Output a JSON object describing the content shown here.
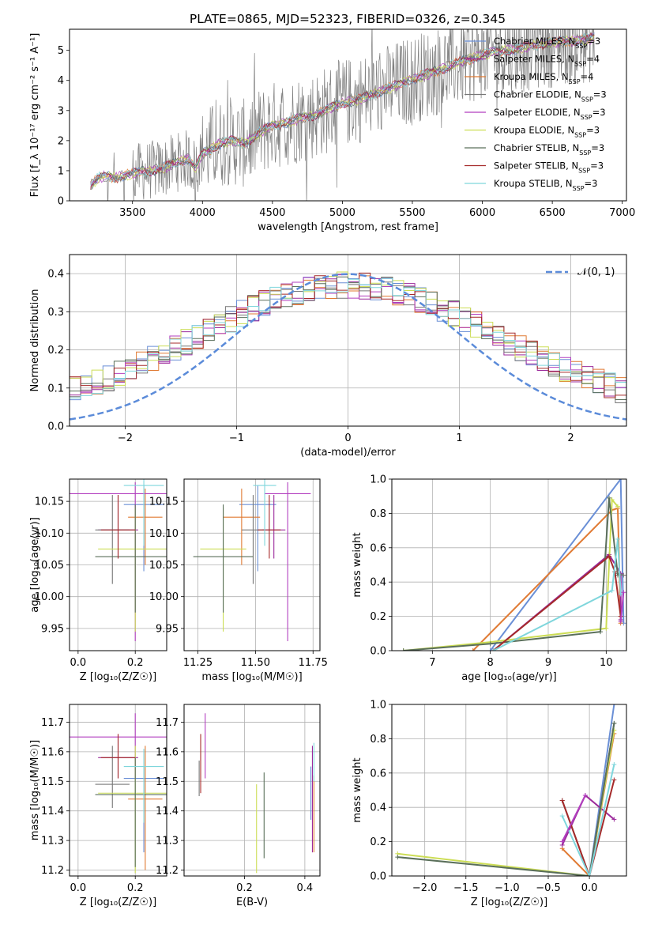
{
  "title": "PLATE=0865, MJD=52323, FIBERID=0326, z=0.345",
  "colors": {
    "chabrier_miles": "#6a8fd6",
    "salpeter_miles": "#9b2a9b",
    "kroupa_miles": "#e07a33",
    "chabrier_elodie": "#777777",
    "salpeter_elodie": "#b23fbf",
    "kroupa_elodie": "#ccdd55",
    "chabrier_stelib": "#5a6f5a",
    "salpeter_stelib": "#a52a2a",
    "kroupa_stelib": "#7fd6dc",
    "data": "#808080",
    "normal": "#5b8bd9",
    "grid": "#b0b0b0"
  },
  "chart_data": [
    {
      "id": "spectrum",
      "type": "line",
      "xlabel": "wavelength [Angstrom, rest frame]",
      "ylabel": "Flux [f_λ 10⁻¹⁷ erg cm⁻² s⁻¹ A⁻¹]",
      "xlim": [
        3050,
        7030
      ],
      "ylim": [
        0,
        5.7
      ],
      "xticks": [
        "3500",
        "4000",
        "4500",
        "5000",
        "5500",
        "6000",
        "6500",
        "7000"
      ],
      "yticks": [
        "0",
        "1",
        "2",
        "3",
        "4",
        "5"
      ],
      "grid": false,
      "legend_placement": "top-right",
      "series": [
        {
          "name": "Chabrier MILES, N",
          "sub": "SSP",
          "suffix": "=3"
        },
        {
          "name": "Salpeter MILES, N",
          "sub": "SSP",
          "suffix": "=4"
        },
        {
          "name": "Kroupa MILES, N",
          "sub": "SSP",
          "suffix": "=4"
        },
        {
          "name": "Chabrier ELODIE, N",
          "sub": "SSP",
          "suffix": "=3"
        },
        {
          "name": "Salpeter ELODIE, N",
          "sub": "SSP",
          "suffix": "=3"
        },
        {
          "name": "Kroupa ELODIE, N",
          "sub": "SSP",
          "suffix": "=3"
        },
        {
          "name": "Chabrier STELIB, N",
          "sub": "SSP",
          "suffix": "=3"
        },
        {
          "name": "Salpeter STELIB, N",
          "sub": "SSP",
          "suffix": "=3"
        },
        {
          "name": "Kroupa STELIB, N",
          "sub": "SSP",
          "suffix": "=3"
        }
      ],
      "model_continuum": [
        [
          3200,
          0.5
        ],
        [
          3230,
          0.65
        ],
        [
          3270,
          0.8
        ],
        [
          3330,
          0.82
        ],
        [
          3380,
          0.75
        ],
        [
          3420,
          0.82
        ],
        [
          3500,
          0.9
        ],
        [
          3600,
          1.0
        ],
        [
          3700,
          1.05
        ],
        [
          3800,
          1.25
        ],
        [
          3900,
          1.4
        ],
        [
          3950,
          1.1
        ],
        [
          4000,
          1.55
        ],
        [
          4100,
          1.85
        ],
        [
          4200,
          2.0
        ],
        [
          4300,
          1.9
        ],
        [
          4400,
          2.25
        ],
        [
          4500,
          2.5
        ],
        [
          4600,
          2.6
        ],
        [
          4700,
          2.75
        ],
        [
          4800,
          2.85
        ],
        [
          4900,
          3.05
        ],
        [
          5000,
          3.25
        ],
        [
          5100,
          3.35
        ],
        [
          5200,
          3.5
        ],
        [
          5300,
          3.7
        ],
        [
          5400,
          3.85
        ],
        [
          5500,
          4.05
        ],
        [
          5600,
          4.2
        ],
        [
          5700,
          4.35
        ],
        [
          5800,
          4.55
        ],
        [
          5900,
          4.7
        ],
        [
          6000,
          4.85
        ],
        [
          6100,
          4.95
        ],
        [
          6200,
          5.0
        ],
        [
          6300,
          5.1
        ],
        [
          6400,
          5.2
        ],
        [
          6500,
          5.25
        ],
        [
          6600,
          5.3
        ],
        [
          6700,
          5.35
        ],
        [
          6800,
          5.4
        ]
      ]
    },
    {
      "id": "residuals",
      "type": "histogram",
      "xlabel": "(data-model)/error",
      "ylabel": "Normed distribution",
      "xlim": [
        -2.5,
        2.5
      ],
      "ylim": [
        0,
        0.45
      ],
      "xticks": [
        "−2",
        "−1",
        "0",
        "1",
        "2"
      ],
      "yticks": [
        "0.0",
        "0.1",
        "0.2",
        "0.3",
        "0.4"
      ],
      "grid": true,
      "legend_placement": "top-right",
      "legend_label": "𝒩(0, 1)",
      "bins": 50
    },
    {
      "id": "age_vs_Z",
      "type": "errorbar",
      "xlabel": "Z [log₁₀(Z/Z☉)]",
      "ylabel": "age  [log₁₀(age/yr)]",
      "xlim": [
        -0.03,
        0.31
      ],
      "ylim": [
        9.915,
        10.185
      ],
      "xticks": [
        "0.0",
        "0.2"
      ],
      "yticks": [
        "9.95",
        "10.00",
        "10.05",
        "10.10",
        "10.15"
      ],
      "grid": true,
      "points": [
        {
          "x": 0.23,
          "xe": 0.07,
          "y": 10.145,
          "ylo": 10.04,
          "yhi": 10.175,
          "c": "chabrier_miles"
        },
        {
          "x": 0.14,
          "xe": 0.07,
          "y": 10.105,
          "ylo": 10.06,
          "yhi": 10.16,
          "c": "salpeter_miles"
        },
        {
          "x": 0.235,
          "xe": 0.06,
          "y": 10.125,
          "ylo": 10.05,
          "yhi": 10.17,
          "c": "kroupa_miles"
        },
        {
          "x": 0.12,
          "xe": 0.06,
          "y": 10.105,
          "ylo": 10.02,
          "yhi": 10.16,
          "c": "chabrier_elodie"
        },
        {
          "x": 0.2,
          "xe": 0.25,
          "y": 10.162,
          "ylo": 9.93,
          "yhi": 10.18,
          "c": "salpeter_elodie"
        },
        {
          "x": 0.2,
          "xe": 0.13,
          "y": 10.075,
          "ylo": 9.945,
          "yhi": 10.14,
          "c": "kroupa_elodie"
        },
        {
          "x": 0.2,
          "xe": 0.14,
          "y": 10.063,
          "ylo": 9.975,
          "yhi": 10.145,
          "c": "chabrier_stelib"
        },
        {
          "x": 0.14,
          "xe": 0.06,
          "y": 10.105,
          "ylo": 10.06,
          "yhi": 10.16,
          "c": "salpeter_stelib"
        },
        {
          "x": 0.23,
          "xe": 0.07,
          "y": 10.175,
          "ylo": 10.08,
          "yhi": 10.185,
          "c": "kroupa_stelib"
        }
      ]
    },
    {
      "id": "age_vs_mass",
      "type": "errorbar",
      "xlabel": "mass [log₁₀(M/M☉)]",
      "ylabel": "",
      "xlim": [
        11.19,
        11.78
      ],
      "ylim": [
        9.915,
        10.185
      ],
      "xticks": [
        "11.25",
        "11.50",
        "11.75"
      ],
      "yticks": [
        "9.95",
        "10.00",
        "10.05",
        "10.10",
        "10.15"
      ],
      "grid": true,
      "points": [
        {
          "x": 11.51,
          "xe": 0.08,
          "y": 10.145,
          "ylo": 10.04,
          "yhi": 10.175,
          "c": "chabrier_miles"
        },
        {
          "x": 11.58,
          "xe": 0.05,
          "y": 10.105,
          "ylo": 10.06,
          "yhi": 10.16,
          "c": "salpeter_miles"
        },
        {
          "x": 11.44,
          "xe": 0.08,
          "y": 10.125,
          "ylo": 10.05,
          "yhi": 10.17,
          "c": "kroupa_miles"
        },
        {
          "x": 11.49,
          "xe": 0.05,
          "y": 10.105,
          "ylo": 10.02,
          "yhi": 10.16,
          "c": "chabrier_elodie"
        },
        {
          "x": 11.64,
          "xe": 0.1,
          "y": 10.162,
          "ylo": 9.93,
          "yhi": 10.18,
          "c": "salpeter_elodie"
        },
        {
          "x": 11.36,
          "xe": 0.1,
          "y": 10.075,
          "ylo": 9.945,
          "yhi": 10.14,
          "c": "kroupa_elodie"
        },
        {
          "x": 11.36,
          "xe": 0.13,
          "y": 10.063,
          "ylo": 9.975,
          "yhi": 10.145,
          "c": "chabrier_stelib"
        },
        {
          "x": 11.56,
          "xe": 0.05,
          "y": 10.105,
          "ylo": 10.06,
          "yhi": 10.16,
          "c": "salpeter_stelib"
        },
        {
          "x": 11.54,
          "xe": 0.05,
          "y": 10.175,
          "ylo": 10.08,
          "yhi": 10.185,
          "c": "kroupa_stelib"
        }
      ]
    },
    {
      "id": "weight_vs_age",
      "type": "line",
      "xlabel": "age  [log₁₀(age/yr)]",
      "ylabel": "mass weight",
      "xlim": [
        6.3,
        10.35
      ],
      "ylim": [
        0,
        1.0
      ],
      "xticks": [
        "7",
        "8",
        "9",
        "10"
      ],
      "yticks": [
        "0.0",
        "0.2",
        "0.4",
        "0.6",
        "0.8",
        "1.0"
      ],
      "grid": true,
      "series": [
        {
          "c": "chabrier_miles",
          "pts": [
            [
              8.0,
              0.0
            ],
            [
              10.25,
              1.0
            ],
            [
              10.3,
              0.16
            ]
          ]
        },
        {
          "c": "kroupa_miles",
          "pts": [
            [
              7.7,
              0.0
            ],
            [
              10.1,
              0.82
            ],
            [
              10.2,
              0.83
            ],
            [
              10.25,
              0.16
            ]
          ]
        },
        {
          "c": "salpeter_miles",
          "pts": [
            [
              8.05,
              0.0
            ],
            [
              10.05,
              0.56
            ],
            [
              10.25,
              0.45
            ],
            [
              10.25,
              0.18
            ]
          ]
        },
        {
          "c": "chabrier_elodie",
          "pts": [
            [
              10.2,
              0.45
            ],
            [
              10.3,
              0.44
            ]
          ]
        },
        {
          "c": "kroupa_elodie",
          "pts": [
            [
              6.5,
              0.0
            ],
            [
              8.0,
              0.05
            ],
            [
              10.0,
              0.13
            ],
            [
              10.1,
              0.88
            ],
            [
              10.2,
              0.84
            ]
          ]
        },
        {
          "c": "chabrier_stelib",
          "pts": [
            [
              6.5,
              0.0
            ],
            [
              8.0,
              0.04
            ],
            [
              9.9,
              0.11
            ],
            [
              10.05,
              0.89
            ],
            [
              10.2,
              0.44
            ]
          ]
        },
        {
          "c": "salpeter_stelib",
          "pts": [
            [
              8.05,
              0.0
            ],
            [
              10.05,
              0.55
            ],
            [
              10.15,
              0.46
            ],
            [
              10.25,
              0.2
            ]
          ]
        },
        {
          "c": "kroupa_stelib",
          "pts": [
            [
              8.05,
              0.0
            ],
            [
              10.1,
              0.35
            ],
            [
              10.2,
              0.65
            ],
            [
              10.25,
              0.33
            ]
          ]
        },
        {
          "c": "salpeter_elodie",
          "pts": [
            [
              10.25,
              0.17
            ],
            [
              10.3,
              0.34
            ]
          ]
        }
      ]
    },
    {
      "id": "mass_vs_Z",
      "type": "errorbar",
      "xlabel": "Z [log₁₀(Z/Z☉)]",
      "ylabel": "mass [log₁₀(M/M☉)]",
      "xlim": [
        -0.03,
        0.31
      ],
      "ylim": [
        11.18,
        11.76
      ],
      "xticks": [
        "0.0",
        "0.2"
      ],
      "yticks": [
        "11.2",
        "11.3",
        "11.4",
        "11.5",
        "11.6",
        "11.7"
      ],
      "grid": true,
      "points": [
        {
          "x": 0.23,
          "xe": 0.07,
          "y": 11.51,
          "ylo": 11.26,
          "yhi": 11.55,
          "c": "chabrier_miles"
        },
        {
          "x": 0.14,
          "xe": 0.07,
          "y": 11.58,
          "ylo": 11.51,
          "yhi": 11.66,
          "c": "salpeter_miles"
        },
        {
          "x": 0.235,
          "xe": 0.06,
          "y": 11.44,
          "ylo": 11.2,
          "yhi": 11.62,
          "c": "kroupa_miles"
        },
        {
          "x": 0.12,
          "xe": 0.06,
          "y": 11.49,
          "ylo": 11.41,
          "yhi": 11.62,
          "c": "chabrier_elodie"
        },
        {
          "x": 0.2,
          "xe": 0.25,
          "y": 11.65,
          "ylo": 11.51,
          "yhi": 11.73,
          "c": "salpeter_elodie"
        },
        {
          "x": 0.2,
          "xe": 0.13,
          "y": 11.46,
          "ylo": 11.19,
          "yhi": 11.62,
          "c": "kroupa_elodie"
        },
        {
          "x": 0.2,
          "xe": 0.14,
          "y": 11.455,
          "ylo": 11.21,
          "yhi": 11.58,
          "c": "chabrier_stelib"
        },
        {
          "x": 0.14,
          "xe": 0.06,
          "y": 11.58,
          "ylo": 11.51,
          "yhi": 11.66,
          "c": "salpeter_stelib"
        },
        {
          "x": 0.23,
          "xe": 0.07,
          "y": 11.55,
          "ylo": 11.36,
          "yhi": 11.61,
          "c": "kroupa_stelib"
        }
      ]
    },
    {
      "id": "mass_vs_EBV",
      "type": "errorbar",
      "xlabel": "E(B-V)",
      "ylabel": "",
      "xlim": [
        0.0,
        0.45
      ],
      "ylim": [
        11.18,
        11.76
      ],
      "xticks": [
        "0.2",
        "0.4"
      ],
      "yticks": [
        "11.2",
        "11.3",
        "11.4",
        "11.5",
        "11.6",
        "11.7"
      ],
      "grid": true,
      "points": [
        {
          "x": 0.42,
          "xe": 0.0,
          "y": 11.51,
          "ylo": 11.37,
          "yhi": 11.55,
          "c": "chabrier_miles"
        },
        {
          "x": 0.425,
          "xe": 0.0,
          "y": 11.58,
          "ylo": 11.26,
          "yhi": 11.62,
          "c": "salpeter_miles"
        },
        {
          "x": 0.43,
          "xe": 0.0,
          "y": 11.44,
          "ylo": 11.26,
          "yhi": 11.52,
          "c": "kroupa_miles"
        },
        {
          "x": 0.05,
          "xe": 0.0,
          "y": 11.49,
          "ylo": 11.45,
          "yhi": 11.57,
          "c": "chabrier_elodie"
        },
        {
          "x": 0.07,
          "xe": 0.0,
          "y": 11.65,
          "ylo": 11.51,
          "yhi": 11.73,
          "c": "salpeter_elodie"
        },
        {
          "x": 0.24,
          "xe": 0.0,
          "y": 11.46,
          "ylo": 11.19,
          "yhi": 11.49,
          "c": "kroupa_elodie"
        },
        {
          "x": 0.265,
          "xe": 0.0,
          "y": 11.455,
          "ylo": 11.24,
          "yhi": 11.53,
          "c": "chabrier_stelib"
        },
        {
          "x": 0.055,
          "xe": 0.0,
          "y": 11.58,
          "ylo": 11.46,
          "yhi": 11.66,
          "c": "salpeter_stelib"
        },
        {
          "x": 0.43,
          "xe": 0.0,
          "y": 11.55,
          "ylo": 11.5,
          "yhi": 11.63,
          "c": "kroupa_stelib"
        }
      ]
    },
    {
      "id": "weight_vs_Z",
      "type": "line",
      "xlabel": "Z [log₁₀(Z/Z☉)]",
      "ylabel": "mass weight",
      "xlim": [
        -2.4,
        0.45
      ],
      "ylim": [
        0,
        1.0
      ],
      "xticks": [
        "−2.0",
        "−1.5",
        "−1.0",
        "−0.5",
        "0.0"
      ],
      "yticks": [
        "0.0",
        "0.2",
        "0.4",
        "0.6",
        "0.8",
        "1.0"
      ],
      "grid": true,
      "series": [
        {
          "c": "chabrier_miles",
          "pts": [
            [
              0.0,
              0.0
            ],
            [
              0.3,
              1.0
            ]
          ]
        },
        {
          "c": "kroupa_miles",
          "pts": [
            [
              -0.33,
              0.16
            ],
            [
              0.0,
              0.0
            ],
            [
              0.3,
              0.83
            ]
          ]
        },
        {
          "c": "salpeter_miles",
          "pts": [
            [
              -0.33,
              0.18
            ],
            [
              -0.05,
              0.47
            ],
            [
              0.3,
              0.33
            ]
          ]
        },
        {
          "c": "chabrier_elodie",
          "pts": [
            [
              -0.33,
              0.44
            ],
            [
              0.0,
              0.0
            ],
            [
              0.3,
              0.89
            ]
          ]
        },
        {
          "c": "kroupa_elodie",
          "pts": [
            [
              -2.33,
              0.13
            ],
            [
              0.0,
              0.0
            ],
            [
              0.3,
              0.85
            ]
          ]
        },
        {
          "c": "chabrier_stelib",
          "pts": [
            [
              -2.33,
              0.11
            ],
            [
              0.0,
              0.0
            ],
            [
              0.3,
              0.89
            ]
          ]
        },
        {
          "c": "salpeter_stelib",
          "pts": [
            [
              -0.33,
              0.44
            ],
            [
              0.0,
              0.0
            ],
            [
              0.3,
              0.56
            ]
          ]
        },
        {
          "c": "kroupa_stelib",
          "pts": [
            [
              -0.33,
              0.35
            ],
            [
              0.0,
              0.0
            ],
            [
              0.3,
              0.65
            ]
          ]
        },
        {
          "c": "salpeter_elodie",
          "pts": [
            [
              -0.33,
              0.2
            ],
            [
              -0.05,
              0.47
            ]
          ]
        }
      ]
    }
  ]
}
